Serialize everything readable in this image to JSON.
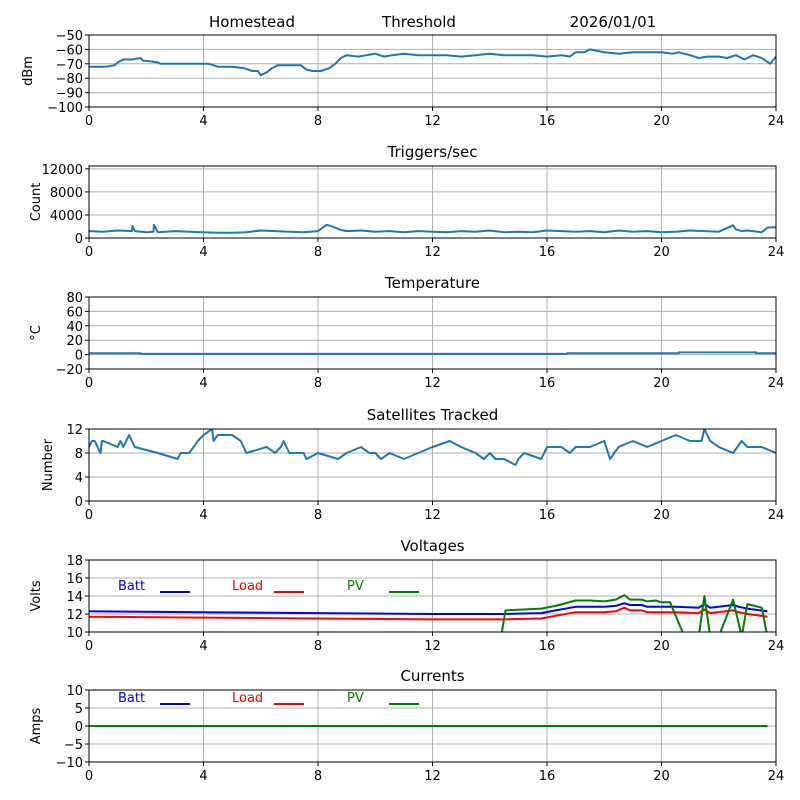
{
  "header": {
    "station": "Homestead",
    "mode": "Threshold",
    "date": "2026/01/01"
  },
  "chart_data": [
    {
      "id": "signal",
      "type": "line",
      "title": "",
      "ylabel": "dBm",
      "xlabel": "",
      "xlim": [
        0,
        24
      ],
      "ylim": [
        -100,
        -50
      ],
      "xticks": [
        0,
        4,
        8,
        12,
        16,
        20,
        24
      ],
      "yticks": [
        -100,
        -90,
        -80,
        -70,
        -60,
        -50
      ],
      "ytick_labels": [
        "−100",
        "−90",
        "−80",
        "−70",
        "−60",
        "−50"
      ],
      "grid": true,
      "series": [
        {
          "name": "signal",
          "color": "#1f77b4",
          "x": [
            0,
            0.6,
            0.9,
            1.0,
            1.2,
            1.5,
            1.8,
            1.9,
            2.0,
            2.4,
            2.5,
            3.5,
            4.0,
            4.2,
            4.5,
            5.0,
            5.4,
            5.7,
            5.9,
            6.0,
            6.2,
            6.4,
            6.6,
            7.0,
            7.4,
            7.6,
            7.8,
            8.1,
            8.4,
            8.6,
            8.8,
            9.0,
            9.4,
            9.7,
            10.0,
            10.3,
            10.6,
            11.0,
            11.5,
            12.0,
            12.5,
            13.0,
            13.5,
            14.0,
            14.5,
            15.0,
            15.5,
            16.0,
            16.5,
            16.8,
            17.0,
            17.3,
            17.5,
            18.0,
            18.5,
            19.0,
            19.5,
            20.0,
            20.4,
            20.6,
            21.0,
            21.3,
            21.6,
            22.0,
            22.3,
            22.6,
            22.9,
            23.2,
            23.5,
            23.8,
            24.0
          ],
          "y": [
            -72,
            -72,
            -71,
            -69,
            -67,
            -67,
            -66,
            -68,
            -68,
            -69,
            -70,
            -70,
            -70,
            -70,
            -72,
            -72,
            -73,
            -75,
            -75,
            -78,
            -76,
            -73,
            -71,
            -71,
            -71,
            -74,
            -75,
            -75,
            -73,
            -70,
            -66,
            -64,
            -65,
            -64,
            -63,
            -65,
            -64,
            -63,
            -64,
            -64,
            -64,
            -65,
            -64,
            -63,
            -64,
            -64,
            -64,
            -65,
            -64,
            -65,
            -62,
            -62,
            -60,
            -62,
            -63,
            -62,
            -62,
            -62,
            -63,
            -62,
            -64,
            -66,
            -65,
            -65,
            -66,
            -64,
            -67,
            -64,
            -66,
            -70,
            -65
          ]
        }
      ]
    },
    {
      "id": "triggers",
      "type": "line",
      "title": "Triggers/sec",
      "ylabel": "Count",
      "xlim": [
        0,
        24
      ],
      "ylim": [
        0,
        12500
      ],
      "xticks": [
        0,
        4,
        8,
        12,
        16,
        20,
        24
      ],
      "yticks": [
        0,
        4000,
        8000,
        12000
      ],
      "ytick_labels": [
        "0",
        "4000",
        "8000",
        "12000"
      ],
      "grid": true,
      "series": [
        {
          "name": "triggers",
          "color": "#1f77b4",
          "x": [
            0,
            0.5,
            1.0,
            1.5,
            1.52,
            1.6,
            2.0,
            2.25,
            2.27,
            2.4,
            3.0,
            3.5,
            4.0,
            4.5,
            5.0,
            5.5,
            6.0,
            6.5,
            7.0,
            7.5,
            8.0,
            8.3,
            8.5,
            8.8,
            9.0,
            9.5,
            10.0,
            10.5,
            11.0,
            11.5,
            12.0,
            12.5,
            13.0,
            13.5,
            14.0,
            14.5,
            15.0,
            15.5,
            16.0,
            16.5,
            17.0,
            17.5,
            18.0,
            18.5,
            19.0,
            19.5,
            20.0,
            20.5,
            21.0,
            21.5,
            22.0,
            22.5,
            22.6,
            22.8,
            23.0,
            23.5,
            23.7,
            24.0
          ],
          "y": [
            1200,
            1100,
            1300,
            1200,
            2100,
            1200,
            1000,
            1100,
            2300,
            1000,
            1200,
            1100,
            1000,
            900,
            900,
            1000,
            1300,
            1200,
            1100,
            1000,
            1200,
            2300,
            2000,
            1400,
            1200,
            1300,
            1100,
            1200,
            1000,
            1200,
            1100,
            1000,
            1200,
            1100,
            1300,
            1000,
            1100,
            1000,
            1300,
            1200,
            1100,
            1200,
            1000,
            1300,
            1100,
            1200,
            1000,
            1100,
            1300,
            1200,
            1100,
            2200,
            1500,
            1200,
            1300,
            1000,
            1800,
            1900
          ]
        }
      ]
    },
    {
      "id": "temperature",
      "type": "line",
      "title": "Temperature",
      "ylabel": "°C",
      "xlim": [
        0,
        24
      ],
      "ylim": [
        -20,
        80
      ],
      "xticks": [
        0,
        4,
        8,
        12,
        16,
        20,
        24
      ],
      "yticks": [
        -20,
        0,
        20,
        40,
        60,
        80
      ],
      "ytick_labels": [
        "−20",
        "0",
        "20",
        "40",
        "60",
        "80"
      ],
      "grid": true,
      "series": [
        {
          "name": "temperature",
          "color": "#1f77b4",
          "x": [
            0,
            1.8,
            1.8,
            16.7,
            16.7,
            20.6,
            20.6,
            23.3,
            23.3,
            24
          ],
          "y": [
            2,
            2,
            1,
            1,
            2,
            2,
            3,
            3,
            2,
            2
          ]
        }
      ]
    },
    {
      "id": "satellites",
      "type": "line",
      "title": "Satellites Tracked",
      "ylabel": "Number",
      "xlim": [
        0,
        24
      ],
      "ylim": [
        0,
        12
      ],
      "xticks": [
        0,
        4,
        8,
        12,
        16,
        20,
        24
      ],
      "yticks": [
        0,
        4,
        8,
        12
      ],
      "ytick_labels": [
        "0",
        "4",
        "8",
        "12"
      ],
      "grid": true,
      "series": [
        {
          "name": "satellites",
          "color": "#1f77b4",
          "x": [
            0,
            0.1,
            0.2,
            0.4,
            0.45,
            0.5,
            1.0,
            1.1,
            1.2,
            1.4,
            1.5,
            1.6,
            2.4,
            3.1,
            3.2,
            3.5,
            3.8,
            4.0,
            4.3,
            4.35,
            4.5,
            5.0,
            5.3,
            5.5,
            6.2,
            6.5,
            6.7,
            6.8,
            7.0,
            7.5,
            7.6,
            8.0,
            8.7,
            9.0,
            9.5,
            9.8,
            10.0,
            10.2,
            10.5,
            11.0,
            11.5,
            12.0,
            12.6,
            13.0,
            13.5,
            13.8,
            14.0,
            14.2,
            14.5,
            14.9,
            15.0,
            15.2,
            15.8,
            16.0,
            16.5,
            16.8,
            17.0,
            17.5,
            18.0,
            18.2,
            18.5,
            19.0,
            19.5,
            20.0,
            20.5,
            21.0,
            21.4,
            21.5,
            21.7,
            22.0,
            22.5,
            22.8,
            23.0,
            23.5,
            24.0
          ],
          "y": [
            9,
            10,
            10,
            8,
            10,
            10,
            9,
            10,
            9,
            11,
            10,
            9,
            8,
            7,
            8,
            8,
            10,
            11,
            12,
            10,
            11,
            11,
            10,
            8,
            9,
            8,
            9,
            10,
            8,
            8,
            7,
            8,
            7,
            8,
            9,
            8,
            8,
            7,
            8,
            7,
            8,
            9,
            10,
            9,
            8,
            7,
            8,
            7,
            7,
            6,
            7,
            8,
            7,
            9,
            9,
            8,
            9,
            9,
            10,
            7,
            9,
            10,
            9,
            10,
            11,
            10,
            10,
            12,
            10,
            9,
            8,
            10,
            9,
            9,
            8
          ]
        }
      ]
    },
    {
      "id": "voltages",
      "type": "line",
      "title": "Voltages",
      "ylabel": "Volts",
      "xlim": [
        0,
        24
      ],
      "ylim": [
        10,
        18
      ],
      "xticks": [
        0,
        4,
        8,
        12,
        16,
        20,
        24
      ],
      "yticks": [
        10,
        12,
        14,
        16,
        18
      ],
      "ytick_labels": [
        "10",
        "12",
        "14",
        "16",
        "18"
      ],
      "grid": true,
      "legend": {
        "placement": "top-left",
        "entries": [
          "Batt",
          "Load",
          "PV"
        ]
      },
      "series": [
        {
          "name": "Batt",
          "color": "#0000ff",
          "x": [
            0,
            4,
            8,
            12,
            14.5,
            15.8,
            16.3,
            17.0,
            18.0,
            18.4,
            18.7,
            18.9,
            19.3,
            19.5,
            20.0,
            20.5,
            21.3,
            21.5,
            21.7,
            22.5,
            22.7,
            23.0,
            23.7
          ],
          "y": [
            12.3,
            12.2,
            12.1,
            12.0,
            12.0,
            12.1,
            12.4,
            12.8,
            12.8,
            12.9,
            13.2,
            13.0,
            13.0,
            12.8,
            12.8,
            12.8,
            12.7,
            13.1,
            12.7,
            13.0,
            12.8,
            12.6,
            12.3
          ]
        },
        {
          "name": "Load",
          "color": "#ff0000",
          "x": [
            0,
            4,
            8,
            12,
            14.5,
            15.8,
            16.3,
            17.0,
            18.0,
            18.4,
            18.7,
            18.9,
            19.3,
            19.5,
            20.0,
            20.5,
            21.3,
            21.5,
            21.7,
            22.5,
            22.7,
            23.0,
            23.7
          ],
          "y": [
            11.7,
            11.6,
            11.5,
            11.4,
            11.4,
            11.5,
            11.8,
            12.2,
            12.2,
            12.3,
            12.7,
            12.4,
            12.4,
            12.2,
            12.2,
            12.2,
            12.1,
            12.5,
            12.1,
            12.4,
            12.2,
            12.0,
            11.7
          ]
        },
        {
          "name": "PV",
          "color": "#008000",
          "x": [
            14.4,
            14.55,
            15.8,
            16.3,
            17.0,
            17.5,
            18.0,
            18.4,
            18.7,
            18.9,
            19.3,
            19.5,
            19.8,
            20.0,
            20.3,
            20.8,
            21.3,
            21.5,
            21.7,
            22.0,
            22.5,
            22.8,
            23.0,
            23.5,
            23.7
          ],
          "y": [
            9.5,
            12.4,
            12.6,
            12.9,
            13.5,
            13.5,
            13.4,
            13.6,
            14.1,
            13.6,
            13.6,
            13.4,
            13.5,
            13.3,
            13.3,
            9.5,
            9.5,
            14.0,
            9.5,
            9.5,
            13.6,
            9.5,
            13.1,
            12.7,
            9.5
          ]
        }
      ]
    },
    {
      "id": "currents",
      "type": "line",
      "title": "Currents",
      "ylabel": "Amps",
      "xlim": [
        0,
        24
      ],
      "ylim": [
        -10,
        10
      ],
      "xticks": [
        0,
        4,
        8,
        12,
        16,
        20,
        24
      ],
      "yticks": [
        -10,
        -5,
        0,
        5,
        10
      ],
      "ytick_labels": [
        "−10",
        "−5",
        "0",
        "5",
        "10"
      ],
      "grid": true,
      "legend": {
        "placement": "top-left",
        "entries": [
          "Batt",
          "Load",
          "PV"
        ]
      },
      "series": [
        {
          "name": "Batt",
          "color": "#0000ff",
          "x": [
            0,
            23.7
          ],
          "y": [
            0,
            0
          ]
        },
        {
          "name": "Load",
          "color": "#ff0000",
          "x": [
            0,
            23.7
          ],
          "y": [
            0,
            0
          ]
        },
        {
          "name": "PV",
          "color": "#008000",
          "x": [
            0,
            23.7
          ],
          "y": [
            0,
            0
          ]
        }
      ]
    }
  ]
}
